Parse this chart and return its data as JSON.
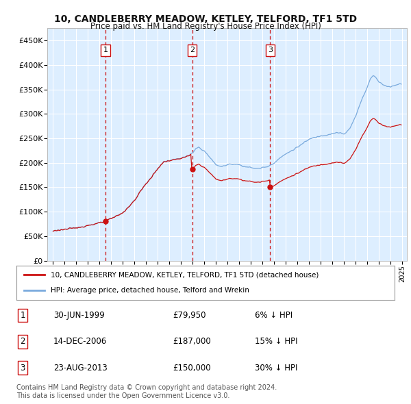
{
  "title": "10, CANDLEBERRY MEADOW, KETLEY, TELFORD, TF1 5TD",
  "subtitle": "Price paid vs. HM Land Registry's House Price Index (HPI)",
  "ylim": [
    0,
    475000
  ],
  "yticks": [
    0,
    50000,
    100000,
    150000,
    200000,
    250000,
    300000,
    350000,
    400000,
    450000
  ],
  "ytick_labels": [
    "£0",
    "£50K",
    "£100K",
    "£150K",
    "£200K",
    "£250K",
    "£300K",
    "£350K",
    "£400K",
    "£450K"
  ],
  "sale_years": [
    1999.497,
    2006.956,
    2013.644
  ],
  "sale_prices": [
    79950,
    187000,
    150000
  ],
  "sale_labels": [
    "1",
    "2",
    "3"
  ],
  "hpi_color": "#7aaadd",
  "price_color": "#cc1111",
  "legend_entries": [
    "10, CANDLEBERRY MEADOW, KETLEY, TELFORD, TF1 5TD (detached house)",
    "HPI: Average price, detached house, Telford and Wrekin"
  ],
  "table_rows": [
    [
      "1",
      "30-JUN-1999",
      "£79,950",
      "6% ↓ HPI"
    ],
    [
      "2",
      "14-DEC-2006",
      "£187,000",
      "15% ↓ HPI"
    ],
    [
      "3",
      "23-AUG-2013",
      "£150,000",
      "30% ↓ HPI"
    ]
  ],
  "footer": "Contains HM Land Registry data © Crown copyright and database right 2024.\nThis data is licensed under the Open Government Licence v3.0.",
  "plot_bg_color": "#ddeeff",
  "fig_bg_color": "#ffffff",
  "grid_color": "#ffffff",
  "dashed_vline_color": "#cc1111"
}
